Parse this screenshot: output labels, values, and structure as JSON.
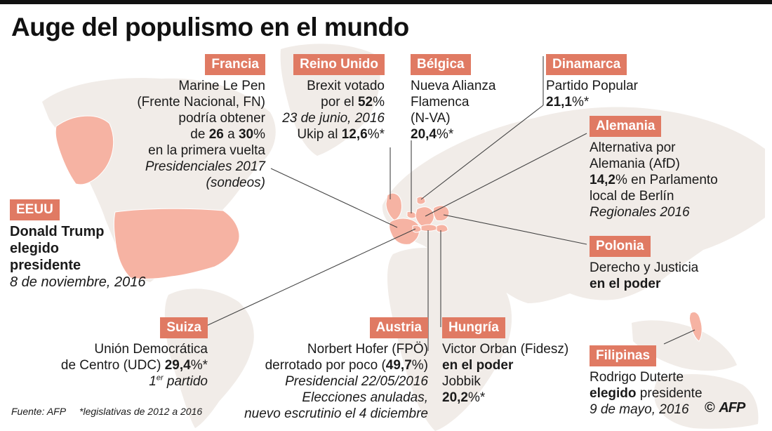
{
  "title": "Auge del populismo en el mundo",
  "colors": {
    "accent": "#e07a63",
    "highlight_country": "#f6b3a3",
    "land": "#f1ece8",
    "leader_line": "#444444"
  },
  "map": {
    "highlighted_countries": [
      "EEUU",
      "Francia",
      "Reino Unido",
      "Bélgica",
      "Dinamarca",
      "Alemania",
      "Polonia",
      "Suiza",
      "Austria",
      "Hungría",
      "Filipinas"
    ]
  },
  "cards": {
    "francia": {
      "label": "Francia",
      "l1": "Marine Le Pen",
      "l2": "(Frente Nacional, FN)",
      "l3": "podría obtener",
      "l4_a": "de ",
      "l4_b": "26",
      "l4_c": " a ",
      "l4_d": "30",
      "l4_e": "%",
      "l5": "en la primera vuelta",
      "l6": "Presidenciales 2017",
      "l7": "(sondeos)"
    },
    "reino_unido": {
      "label": "Reino Unido",
      "l1": "Brexit votado",
      "l2_a": "por el ",
      "l2_b": "52",
      "l2_c": "%",
      "l3": "23 de junio, 2016",
      "l4_a": "Ukip al ",
      "l4_b": "12,6",
      "l4_c": "%*"
    },
    "belgica": {
      "label": "Bélgica",
      "l1": "Nueva Alianza",
      "l2": "Flamenca",
      "l3": "(N-VA)",
      "l4_a": "20,4",
      "l4_b": "%*"
    },
    "dinamarca": {
      "label": "Dinamarca",
      "l1": "Partido Popular",
      "l2_a": "21,1",
      "l2_b": "%*"
    },
    "alemania": {
      "label": "Alemania",
      "l1": "Alternativa por",
      "l2": "Alemania (AfD)",
      "l3_a": "14,2",
      "l3_b": "% en Parlamento",
      "l4": "local de Berlín",
      "l5": "Regionales 2016"
    },
    "eeuu": {
      "label": "EEUU",
      "l1": "Donald Trump",
      "l2": "elegido",
      "l3": "presidente",
      "l4": "8 de noviembre, 2016"
    },
    "polonia": {
      "label": "Polonia",
      "l1": "Derecho y Justicia",
      "l2": "en el poder"
    },
    "suiza": {
      "label": "Suiza",
      "l1": "Unión Democrática",
      "l2_a": "de Centro (UDC) ",
      "l2_b": "29,4",
      "l2_c": "%*",
      "l3_a": "1",
      "l3_sup": "er",
      "l3_b": " partido"
    },
    "austria": {
      "label": "Austria",
      "l1": "Norbert Hofer (FPÖ)",
      "l2_a": "derrotado por poco (",
      "l2_b": "49,7",
      "l2_c": "%)",
      "l3": "Presidencial 22/05/2016",
      "l4": "Elecciones anuladas,",
      "l5": "nuevo escrutinio el 4 diciembre"
    },
    "hungria": {
      "label": "Hungría",
      "l1": "Victor Orban (Fidesz)",
      "l2": "en el poder",
      "l3": "Jobbik",
      "l4_a": "20,2",
      "l4_b": "%*"
    },
    "filipinas": {
      "label": "Filipinas",
      "l1": "Rodrigo Duterte",
      "l2_a": "elegido",
      "l2_b": " presidente",
      "l3": "9 de mayo, 2016"
    }
  },
  "footer": {
    "source": "Fuente: AFP",
    "note": "*legislativas de 2012 a 2016"
  },
  "credit": {
    "copyright": "©",
    "logo": "AFP"
  }
}
